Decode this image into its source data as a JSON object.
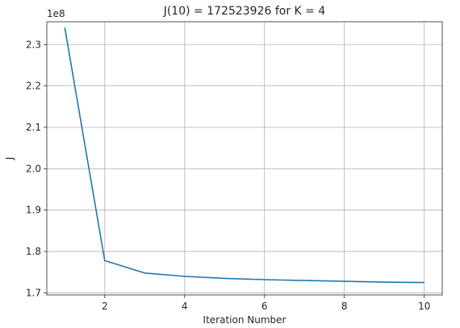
{
  "chart_data": {
    "type": "line",
    "title": "J(10) = 172523926 for K = 4",
    "xlabel": "Iteration Number",
    "ylabel": "J",
    "y_offset_label": "1e8",
    "xlim": [
      0.55,
      10.45
    ],
    "ylim": [
      1.695,
      2.355
    ],
    "x_ticks": [
      2,
      4,
      6,
      8,
      10
    ],
    "x_tick_labels": [
      "2",
      "4",
      "6",
      "8",
      "10"
    ],
    "y_ticks": [
      1.7,
      1.8,
      1.9,
      2.0,
      2.1,
      2.2,
      2.3
    ],
    "y_tick_labels": [
      "1.7",
      "1.8",
      "1.9",
      "2.0",
      "2.1",
      "2.2",
      "2.3"
    ],
    "grid": true,
    "series": [
      {
        "color": "#1f77b4",
        "x": [
          1,
          2,
          3,
          4,
          5,
          6,
          7,
          8,
          9,
          10
        ],
        "y": [
          2.341,
          1.778,
          1.748,
          1.74,
          1.735,
          1.732,
          1.73,
          1.728,
          1.726,
          1.725
        ]
      }
    ]
  }
}
